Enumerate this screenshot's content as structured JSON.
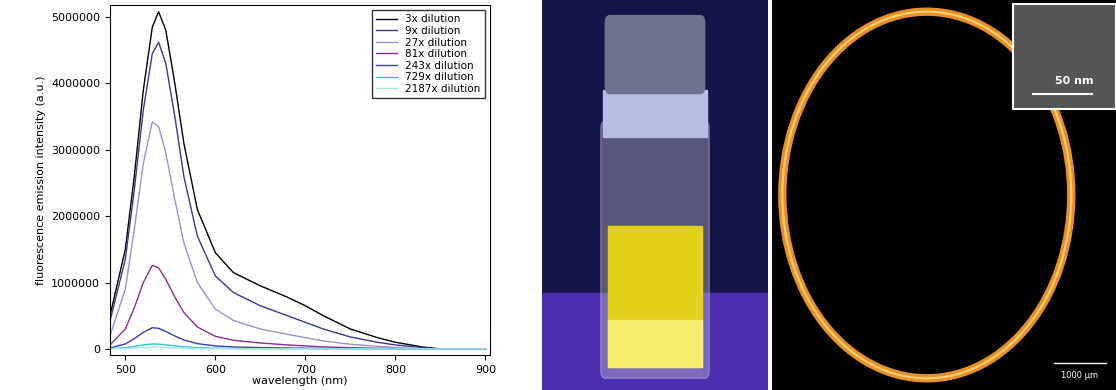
{
  "chart_data": {
    "type": "line",
    "xlabel": "wavelength (nm)",
    "ylabel": "fluorescence emission intensity (a.u.)",
    "x": [
      483,
      500,
      510,
      520,
      530,
      537,
      545,
      555,
      565,
      580,
      600,
      620,
      650,
      680,
      700,
      720,
      750,
      780,
      800,
      830,
      850,
      900
    ],
    "series": [
      {
        "name": "3x dilution",
        "color": "#000000",
        "values": [
          500000,
          1500000,
          2600000,
          3900000,
          4850000,
          5080000,
          4800000,
          4000000,
          3100000,
          2100000,
          1450000,
          1150000,
          950000,
          780000,
          650000,
          500000,
          300000,
          170000,
          100000,
          30000,
          0,
          0
        ]
      },
      {
        "name": "9x dilution",
        "color": "#3a3a8c",
        "values": [
          420000,
          1350000,
          2400000,
          3600000,
          4450000,
          4620000,
          4300000,
          3500000,
          2600000,
          1700000,
          1100000,
          850000,
          650000,
          500000,
          400000,
          300000,
          180000,
          100000,
          60000,
          20000,
          0,
          0
        ]
      },
      {
        "name": "27x dilution",
        "color": "#9c8fd6",
        "values": [
          200000,
          900000,
          1800000,
          2800000,
          3420000,
          3350000,
          2950000,
          2250000,
          1600000,
          1000000,
          600000,
          430000,
          300000,
          220000,
          170000,
          120000,
          70000,
          40000,
          20000,
          5000,
          0,
          0
        ]
      },
      {
        "name": "81x dilution",
        "color": "#8b2f8b",
        "values": [
          60000,
          300000,
          620000,
          1000000,
          1260000,
          1220000,
          1050000,
          780000,
          550000,
          330000,
          190000,
          130000,
          90000,
          60000,
          45000,
          30000,
          18000,
          10000,
          5000,
          0,
          0,
          0
        ]
      },
      {
        "name": "243x dilution",
        "color": "#3b3bbf",
        "values": [
          15000,
          75000,
          155000,
          250000,
          320000,
          310000,
          265000,
          195000,
          135000,
          80000,
          45000,
          30000,
          20000,
          14000,
          10000,
          7000,
          4000,
          2000,
          1000,
          0,
          0,
          0
        ]
      },
      {
        "name": "729x dilution",
        "color": "#33c1d6",
        "values": [
          4000,
          18000,
          37000,
          60000,
          75000,
          72000,
          62000,
          46000,
          32000,
          19000,
          11000,
          7000,
          5000,
          3000,
          2000,
          1500,
          1000,
          500,
          0,
          0,
          0,
          0
        ]
      },
      {
        "name": "2187x dilution",
        "color": "#a8e6e6",
        "values": [
          1300,
          6000,
          12000,
          20000,
          25000,
          24000,
          20000,
          15000,
          10000,
          6000,
          3500,
          2300,
          1500,
          1000,
          700,
          500,
          300,
          100,
          0,
          0,
          0,
          0
        ]
      }
    ],
    "xlim": [
      483,
      905
    ],
    "xticks": [
      500,
      600,
      700,
      800,
      900
    ],
    "ylim": [
      -90000,
      5180000
    ],
    "yticks": [
      0,
      1000000,
      2000000,
      3000000,
      4000000,
      5000000
    ],
    "legend": "upper right"
  },
  "micrograph": {
    "inset_scale_bar": "50 nm",
    "scale_bar": "1000 µm"
  }
}
